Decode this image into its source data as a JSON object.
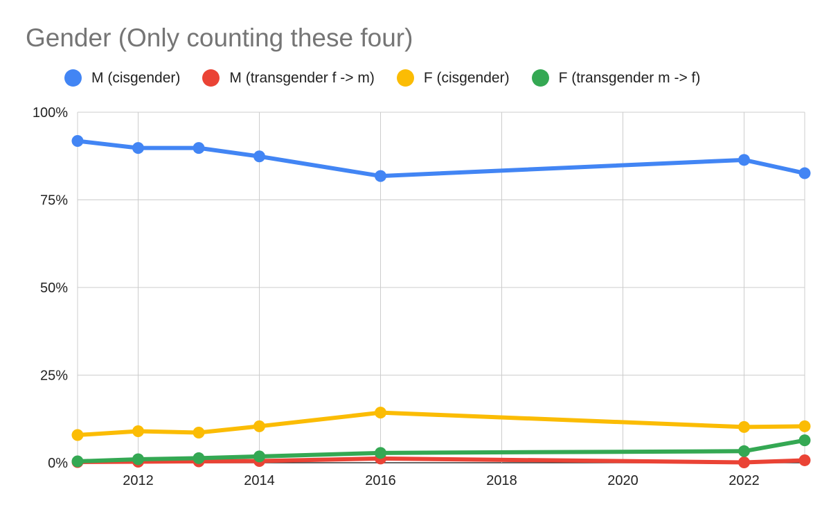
{
  "chart_data": {
    "type": "line",
    "title": "Gender (Only counting these four)",
    "xlabel": "",
    "ylabel": "",
    "xlim": [
      2011,
      2023
    ],
    "ylim": [
      0,
      100
    ],
    "x_ticks": [
      "2012",
      "2014",
      "2016",
      "2018",
      "2020",
      "2022"
    ],
    "y_ticks": [
      "0%",
      "25%",
      "50%",
      "75%",
      "100%"
    ],
    "grid": true,
    "legend_position": "top",
    "x": [
      2011,
      2012,
      2013,
      2014,
      2016,
      2022,
      2023
    ],
    "series": [
      {
        "name": "M (cisgender)",
        "color": "#4285f4",
        "values": [
          91.8,
          89.8,
          89.8,
          87.4,
          81.8,
          86.4,
          82.6
        ]
      },
      {
        "name": "M (transgender f -> m)",
        "color": "#ea4335",
        "values": [
          0.2,
          0.3,
          0.4,
          0.5,
          1.2,
          0.1,
          0.7
        ]
      },
      {
        "name": "F (cisgender)",
        "color": "#fbbc04",
        "values": [
          7.9,
          9.0,
          8.6,
          10.4,
          14.3,
          10.2,
          10.4
        ]
      },
      {
        "name": "F (transgender m -> f)",
        "color": "#34a853",
        "values": [
          0.4,
          1.0,
          1.3,
          1.8,
          2.8,
          3.3,
          6.4
        ]
      }
    ]
  }
}
